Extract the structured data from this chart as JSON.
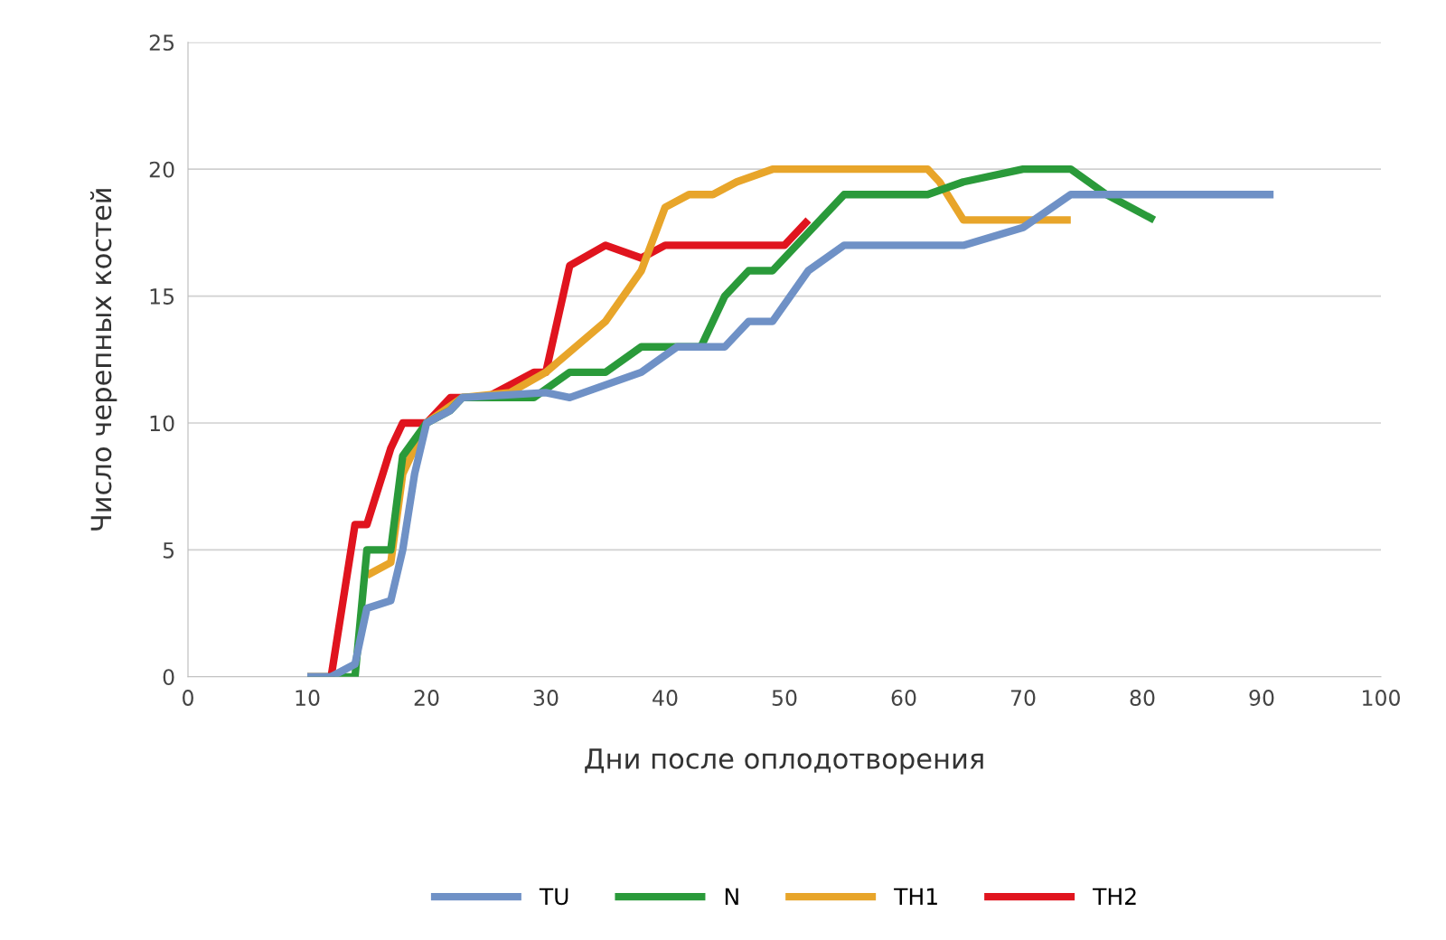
{
  "chart_data": {
    "type": "line",
    "xlabel": "Дни после оплодотворения",
    "ylabel": "Число черепных костей",
    "xlim": [
      0,
      100
    ],
    "xticks": [
      0,
      10,
      20,
      30,
      40,
      50,
      60,
      70,
      80,
      90,
      100
    ],
    "ylim": [
      0,
      25
    ],
    "yticks": [
      0,
      5,
      10,
      15,
      20,
      25
    ],
    "grid": "y",
    "legend": "bottom",
    "marker": "none",
    "line_style": "solid",
    "series": [
      {
        "name": "TU",
        "color": "#6f91c6",
        "x": [
          10,
          12,
          14,
          15,
          17,
          18,
          19,
          20,
          22,
          23,
          30,
          32,
          35,
          38,
          41,
          45,
          47,
          49,
          52,
          55,
          65,
          70,
          74,
          91
        ],
        "values": [
          0,
          0,
          0.5,
          2.7,
          3,
          5,
          8,
          10,
          10.5,
          11,
          11.2,
          11,
          11.5,
          12,
          13,
          13,
          14,
          14,
          16,
          17,
          17,
          17.7,
          19,
          19
        ]
      },
      {
        "name": "N",
        "color": "#2a9a3a",
        "x": [
          10,
          14,
          15,
          17,
          18,
          20,
          22,
          23,
          25,
          29,
          32,
          35,
          38,
          41,
          43,
          45,
          47,
          49,
          52,
          55,
          62,
          65,
          70,
          74,
          77,
          81
        ],
        "values": [
          0,
          0,
          5,
          5,
          8.7,
          10,
          10.5,
          11,
          11,
          11,
          12,
          12,
          13,
          13,
          13,
          15,
          16,
          16,
          17.5,
          19,
          19,
          19.5,
          20,
          20,
          19,
          18
        ]
      },
      {
        "name": "TH1",
        "color": "#e8a52a",
        "x": [
          15,
          17,
          18,
          20,
          23,
          27,
          30,
          32,
          35,
          38,
          40,
          42,
          44,
          46,
          49,
          62,
          63,
          65,
          70,
          74
        ],
        "values": [
          4,
          4.5,
          8,
          10,
          11,
          11.2,
          12,
          12.8,
          14,
          16,
          18.5,
          19,
          19,
          19.5,
          20,
          20,
          19.5,
          18,
          18,
          18
        ]
      },
      {
        "name": "TH2",
        "color": "#e0141e",
        "x": [
          10,
          12,
          14,
          15,
          17,
          18,
          20,
          22,
          25,
          29,
          30,
          32,
          35,
          38,
          40,
          50,
          52
        ],
        "values": [
          0,
          0,
          6,
          6,
          9,
          10,
          10,
          11,
          11,
          12,
          12,
          16.2,
          17,
          16.5,
          17,
          17,
          18
        ]
      }
    ]
  }
}
